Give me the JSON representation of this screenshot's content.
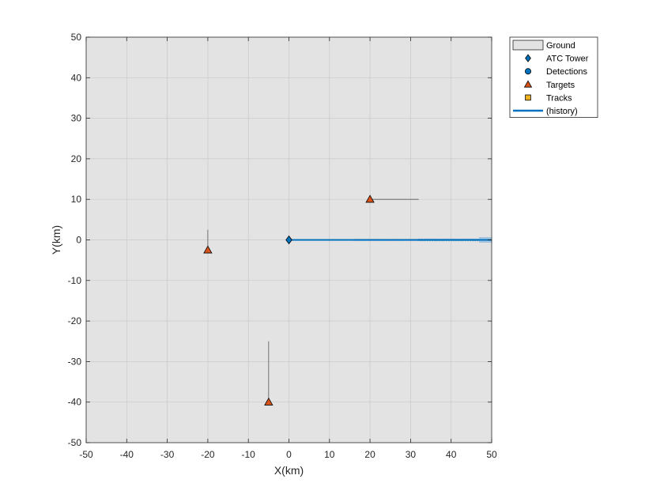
{
  "chart_data": {
    "type": "scatter",
    "title": "",
    "xlabel": "X(km)",
    "ylabel": "Y(km)",
    "xlim": [
      -50,
      50
    ],
    "ylim": [
      -50,
      50
    ],
    "grid": true,
    "xticks": [
      "-50",
      "-40",
      "-30",
      "-20",
      "-10",
      "0",
      "10",
      "20",
      "30",
      "40",
      "50"
    ],
    "yticks": [
      "50",
      "40",
      "30",
      "20",
      "10",
      "0",
      "-10",
      "-20",
      "-30",
      "-40",
      "-50"
    ],
    "legend_position": "outside-top-right",
    "series": [
      {
        "name": "Ground",
        "kind": "patch",
        "color": "#e3e3e3",
        "x": [
          -50,
          50
        ],
        "y": [
          -50,
          50
        ]
      },
      {
        "name": "ATC Tower",
        "kind": "marker",
        "marker": "diamond",
        "color": "#0072bd",
        "points": [
          {
            "x": 0,
            "y": 0
          }
        ]
      },
      {
        "name": "Detections",
        "kind": "marker",
        "marker": "circle",
        "color": "#0072bd",
        "points": []
      },
      {
        "name": "Targets",
        "kind": "marker",
        "marker": "triangle",
        "color": "#d95319",
        "points": [
          {
            "x": 20,
            "y": 10
          },
          {
            "x": -20,
            "y": -2.5
          },
          {
            "x": -5,
            "y": -40
          }
        ]
      },
      {
        "name": "Tracks",
        "kind": "marker",
        "marker": "square",
        "color": "#edb120",
        "points": []
      },
      {
        "name": "(history)",
        "kind": "line",
        "color": "#0072bd",
        "x": [
          0,
          50
        ],
        "y": [
          0,
          0
        ]
      }
    ],
    "target_history": [
      {
        "x": [
          20,
          32
        ],
        "y": [
          10,
          10
        ]
      },
      {
        "x": [
          -20,
          -20
        ],
        "y": [
          -2.5,
          2.5
        ]
      },
      {
        "x": [
          -5,
          -5
        ],
        "y": [
          -40,
          -25
        ]
      }
    ],
    "beam_segments": [
      {
        "x": [
          16,
          32
        ],
        "y": [
          0,
          0
        ],
        "halfwidth": 0.1
      },
      {
        "x": [
          32,
          47
        ],
        "y": [
          0,
          0
        ],
        "halfwidth": 0.25
      },
      {
        "x": [
          47,
          50
        ],
        "y": [
          0,
          0
        ],
        "halfwidth": 0.6
      }
    ]
  }
}
